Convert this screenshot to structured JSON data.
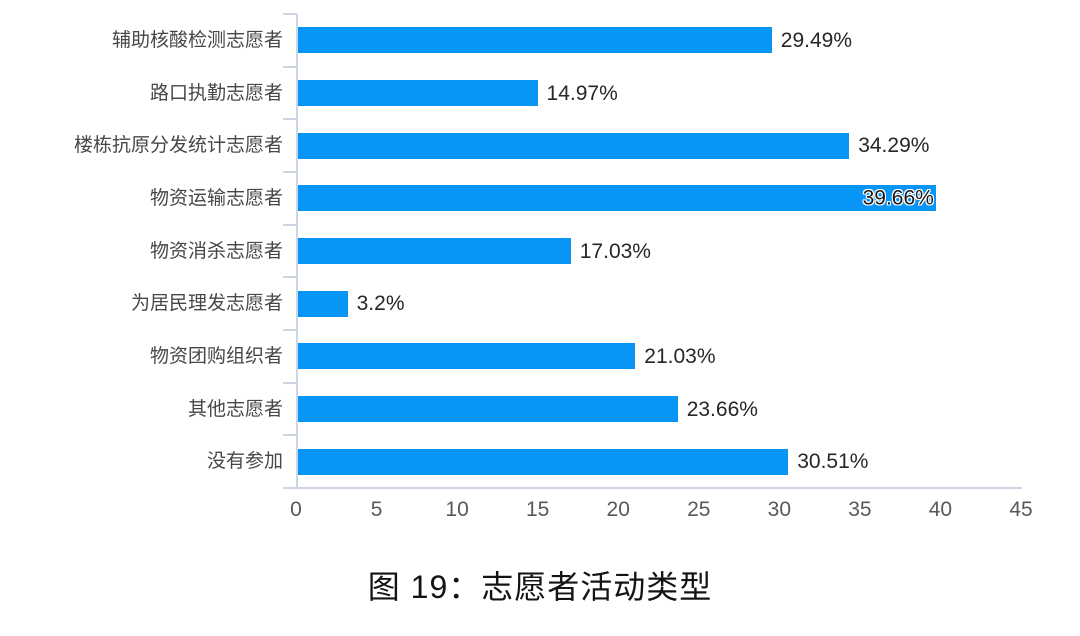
{
  "chart_data": {
    "type": "bar",
    "orientation": "horizontal",
    "title": "图 19：志愿者活动类型",
    "xlabel": "",
    "ylabel": "",
    "categories": [
      "辅助核酸检测志愿者",
      "路口执勤志愿者",
      "楼栋抗原分发统计志愿者",
      "物资运输志愿者",
      "物资消杀志愿者",
      "为居民理发志愿者",
      "物资团购组织者",
      "其他志愿者",
      "没有参加"
    ],
    "values": [
      29.49,
      14.97,
      34.29,
      39.66,
      17.03,
      3.2,
      21.03,
      23.66,
      30.51
    ],
    "value_labels": [
      "29.49%",
      "14.97%",
      "34.29%",
      "39.66%",
      "17.03%",
      "3.2%",
      "21.03%",
      "23.66%",
      "30.51%"
    ],
    "label_inside": [
      false,
      false,
      false,
      true,
      false,
      false,
      false,
      false,
      false
    ],
    "xlim": [
      0,
      45
    ],
    "x_ticks": [
      0,
      5,
      10,
      15,
      20,
      25,
      30,
      35,
      40,
      45
    ],
    "grid": false,
    "legend": "none",
    "bar_color": "#0995f5",
    "axis_color": "#ccd6e4"
  }
}
